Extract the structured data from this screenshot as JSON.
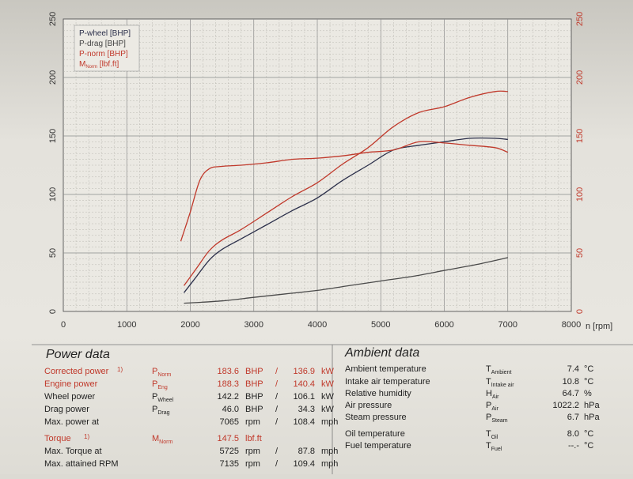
{
  "chart_data": {
    "type": "line",
    "x_label": "n [rpm]",
    "x_ticks": [
      "0",
      "1000",
      "2000",
      "3000",
      "4000",
      "5000",
      "6000",
      "7000",
      "8000"
    ],
    "xlim": [
      0,
      8000
    ],
    "y_left_ticks": [
      "0",
      "50",
      "100",
      "150",
      "200",
      "250"
    ],
    "ylim_left": [
      0,
      250
    ],
    "y_right_ticks": [
      "0",
      "50",
      "100",
      "150",
      "200",
      "250"
    ],
    "ylim_right": [
      0,
      250
    ],
    "grid": true,
    "legend_position": "top-left",
    "series": [
      {
        "name": "P-wheel [BHP]",
        "color": "#2b2f4a",
        "axis": "left",
        "x": [
          1900,
          2100,
          2300,
          2500,
          2800,
          3200,
          3600,
          4000,
          4400,
          4800,
          5200,
          5600,
          6000,
          6400,
          6800,
          7000
        ],
        "y": [
          16,
          30,
          44,
          53,
          62,
          74,
          86,
          97,
          112,
          125,
          138,
          142,
          145,
          148,
          148,
          147
        ]
      },
      {
        "name": "P-drag [BHP]",
        "color": "#4a4a4a",
        "axis": "left",
        "x": [
          1900,
          2500,
          3000,
          3500,
          4000,
          4500,
          5000,
          5500,
          6000,
          6500,
          7000
        ],
        "y": [
          7,
          9,
          12,
          15,
          18,
          22,
          26,
          30,
          35,
          40,
          46
        ]
      },
      {
        "name": "P-norm [BHP]",
        "color": "#c0392b",
        "axis": "left",
        "x": [
          1900,
          2100,
          2300,
          2500,
          2800,
          3200,
          3600,
          4000,
          4400,
          4800,
          5200,
          5600,
          6000,
          6400,
          6800,
          7000
        ],
        "y": [
          22,
          37,
          52,
          61,
          70,
          84,
          98,
          110,
          126,
          140,
          158,
          170,
          175,
          183,
          188,
          188
        ]
      },
      {
        "name": "M_Norm [lbf.ft]",
        "color": "#c0392b",
        "axis": "right",
        "x": [
          1850,
          2000,
          2150,
          2300,
          2500,
          2800,
          3200,
          3600,
          4000,
          4400,
          4800,
          5200,
          5600,
          6000,
          6400,
          6800,
          7000
        ],
        "y": [
          60,
          85,
          112,
          122,
          124,
          125,
          127,
          130,
          131,
          133,
          136,
          138,
          145,
          144,
          142,
          140,
          136
        ]
      }
    ]
  },
  "legend": {
    "line1": "P-wheel [BHP]",
    "line2": "P-drag [BHP]",
    "line3": "P-norm [BHP]",
    "line4_main": "M",
    "line4_sub": "Norm",
    "line4_unit": " [lbf.ft]"
  },
  "power_data": {
    "title": "Power data",
    "rows": [
      {
        "label": "Corrected power",
        "sup": "1)",
        "sym": "P",
        "sym_sub": "Norm",
        "v1": "183.6",
        "u1": "BHP",
        "sep": "/",
        "v2": "136.9",
        "u2": "kW",
        "color": "red"
      },
      {
        "label": "Engine power",
        "sup": "",
        "sym": "P",
        "sym_sub": "Eng",
        "v1": "188.3",
        "u1": "BHP",
        "sep": "/",
        "v2": "140.4",
        "u2": "kW",
        "color": "red"
      },
      {
        "label": "Wheel power",
        "sup": "",
        "sym": "P",
        "sym_sub": "Wheel",
        "v1": "142.2",
        "u1": "BHP",
        "sep": "/",
        "v2": "106.1",
        "u2": "kW",
        "color": "dark"
      },
      {
        "label": "Drag power",
        "sup": "",
        "sym": "P",
        "sym_sub": "Drag",
        "v1": "46.0",
        "u1": "BHP",
        "sep": "/",
        "v2": "34.3",
        "u2": "kW",
        "color": "dark"
      },
      {
        "label": "Max. power at",
        "sup": "",
        "sym": "",
        "sym_sub": "",
        "v1": "7065",
        "u1": "rpm",
        "sep": "/",
        "v2": "108.4",
        "u2": "mph",
        "color": "dark"
      },
      {
        "label": "Torque",
        "sup": "1)",
        "sym": "M",
        "sym_sub": "Norm",
        "v1": "147.5",
        "u1": "lbf.ft",
        "sep": "",
        "v2": "",
        "u2": "",
        "color": "red"
      },
      {
        "label": "Max. Torque at",
        "sup": "",
        "sym": "",
        "sym_sub": "",
        "v1": "5725",
        "u1": "rpm",
        "sep": "/",
        "v2": "87.8",
        "u2": "mph",
        "color": "dark"
      },
      {
        "label": "Max. attained RPM",
        "sup": "",
        "sym": "",
        "sym_sub": "",
        "v1": "7135",
        "u1": "rpm",
        "sep": "/",
        "v2": "109.4",
        "u2": "mph",
        "color": "dark"
      }
    ]
  },
  "ambient_data": {
    "title": "Ambient data",
    "rows": [
      {
        "label": "Ambient temperature",
        "sym": "T",
        "sym_sub": "Ambient",
        "value": "7.4",
        "unit": "°C"
      },
      {
        "label": "Intake air temperature",
        "sym": "T",
        "sym_sub": "Intake air",
        "value": "10.8",
        "unit": "°C"
      },
      {
        "label": "Relative humidity",
        "sym": "H",
        "sym_sub": "Air",
        "value": "64.7",
        "unit": "%"
      },
      {
        "label": "Air pressure",
        "sym": "P",
        "sym_sub": "Air",
        "value": "1022.2",
        "unit": "hPa"
      },
      {
        "label": "Steam pressure",
        "sym": "P",
        "sym_sub": "Steam",
        "value": "6.7",
        "unit": "hPa"
      },
      {
        "label": "Oil temperature",
        "sym": "T",
        "sym_sub": "Oil",
        "value": "8.0",
        "unit": "°C"
      },
      {
        "label": "Fuel temperature",
        "sym": "T",
        "sym_sub": "Fuel",
        "value": "--.-",
        "unit": "°C"
      }
    ]
  }
}
